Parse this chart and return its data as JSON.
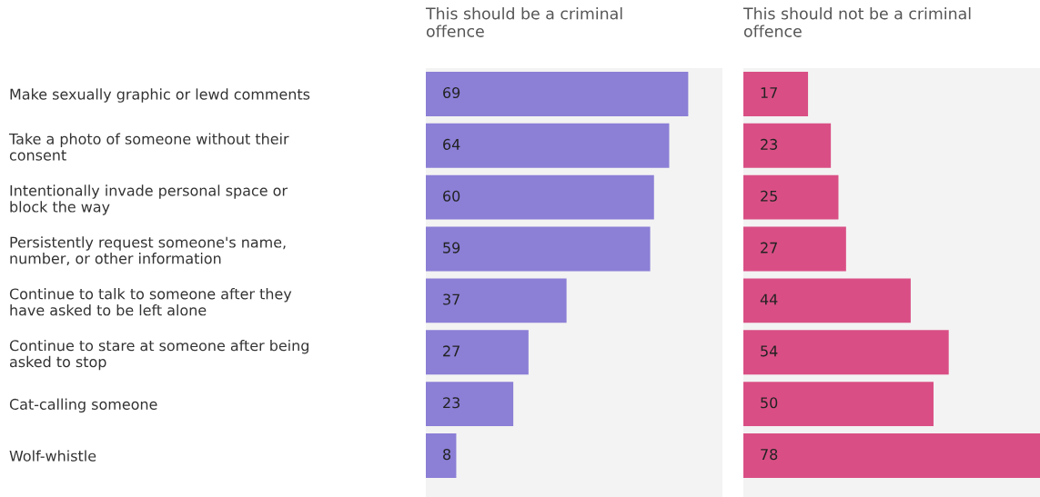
{
  "chart_data": [
    {
      "type": "bar",
      "orientation": "horizontal",
      "title": "This should be a criminal\noffence",
      "categories": [
        "Make sexually graphic or lewd comments",
        "Take a photo of someone without their\nconsent",
        "Intentionally invade personal space or\nblock the way",
        "Persistently request someone's name,\nnumber, or other information",
        "Continue to talk to someone after they\nhave asked to be left alone",
        "Continue to stare at someone after being\nasked to stop",
        "Cat-calling someone",
        "Wolf-whistle"
      ],
      "values": [
        69,
        64,
        60,
        59,
        37,
        27,
        23,
        8
      ],
      "color": "#8b7fd6",
      "data_labels": true,
      "xlim": [
        0,
        78
      ],
      "tick_labels": "y",
      "grid": false,
      "legend": false
    },
    {
      "type": "bar",
      "orientation": "horizontal",
      "title": "This should not be a criminal\noffence",
      "values": [
        17,
        23,
        25,
        27,
        44,
        54,
        50,
        78
      ],
      "color": "#d94f85",
      "data_labels": true,
      "xlim": [
        0,
        78
      ],
      "tick_labels": false,
      "grid": false,
      "legend": false
    }
  ]
}
